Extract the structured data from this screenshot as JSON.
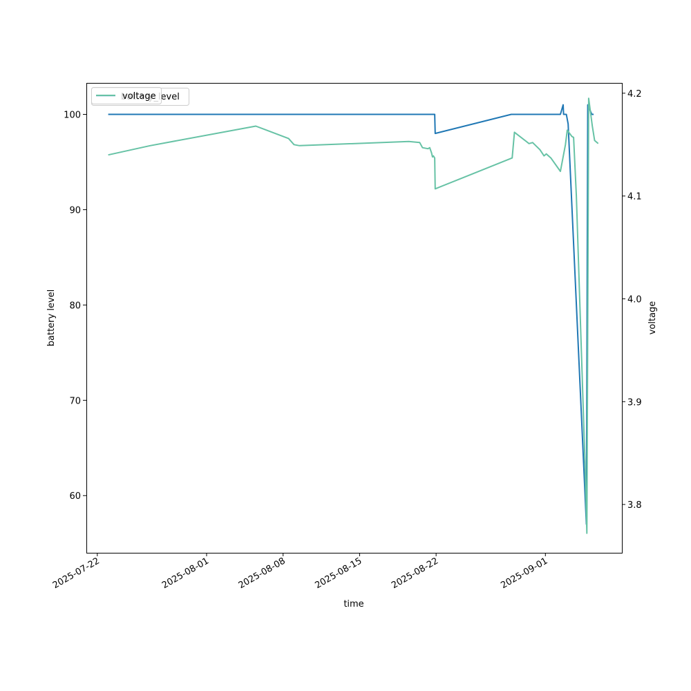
{
  "chart_data": {
    "type": "line",
    "title": "",
    "xlabel": "time",
    "ylabel_left": "battery level",
    "ylabel_right": "voltage",
    "x_range": [
      "2025-07-21",
      "2025-09-08"
    ],
    "x_ticks": [
      "2025-07-22",
      "2025-08-01",
      "2025-08-08",
      "2025-08-15",
      "2025-08-22",
      "2025-09-01"
    ],
    "y_left_range": [
      54,
      103.3
    ],
    "y_left_ticks": [
      60,
      70,
      80,
      90,
      100
    ],
    "y_right_range": [
      3.753,
      4.21
    ],
    "y_right_ticks": [
      3.8,
      3.9,
      4.0,
      4.1,
      4.2
    ],
    "grid": false,
    "legends": [
      {
        "placement": "top-left",
        "entries": [
          "battery_level"
        ]
      },
      {
        "placement": "top-left",
        "entries": [
          "voltage"
        ]
      }
    ],
    "series": [
      {
        "name": "battery_level",
        "axis": "left",
        "color": "#1f77b4",
        "points": [
          [
            "2025-07-23 00:00",
            100
          ],
          [
            "2025-08-21 21:00",
            100
          ],
          [
            "2025-08-21 22:00",
            98
          ],
          [
            "2025-08-28 21:00",
            100
          ],
          [
            "2025-09-02 09:00",
            100
          ],
          [
            "2025-09-02 15:00",
            101
          ],
          [
            "2025-09-02 16:00",
            100
          ],
          [
            "2025-09-02 22:00",
            100
          ],
          [
            "2025-09-03 02:00",
            99
          ],
          [
            "2025-09-04 18:00",
            57
          ],
          [
            "2025-09-04 21:00",
            101
          ],
          [
            "2025-09-05 06:00",
            100
          ],
          [
            "2025-09-05 10:00",
            100
          ]
        ]
      },
      {
        "name": "voltage",
        "axis": "right",
        "color": "#66c2a5",
        "points": [
          [
            "2025-07-23 00:00",
            4.14
          ],
          [
            "2025-07-26 20:00",
            4.149
          ],
          [
            "2025-08-05 12:00",
            4.168
          ],
          [
            "2025-08-08 12:00",
            4.156
          ],
          [
            "2025-08-09 00:00",
            4.15
          ],
          [
            "2025-08-09 12:00",
            4.149
          ],
          [
            "2025-08-19 12:00",
            4.153
          ],
          [
            "2025-08-20 12:00",
            4.152
          ],
          [
            "2025-08-20 18:00",
            4.147
          ],
          [
            "2025-08-21 06:00",
            4.146
          ],
          [
            "2025-08-21 10:00",
            4.147
          ],
          [
            "2025-08-21 14:00",
            4.142
          ],
          [
            "2025-08-21 16:00",
            4.138
          ],
          [
            "2025-08-21 18:00",
            4.139
          ],
          [
            "2025-08-21 21:00",
            4.137
          ],
          [
            "2025-08-21 22:00",
            4.107
          ],
          [
            "2025-08-28 23:00",
            4.137
          ],
          [
            "2025-08-29 04:00",
            4.162
          ],
          [
            "2025-08-30 12:00",
            4.151
          ],
          [
            "2025-08-30 20:00",
            4.152
          ],
          [
            "2025-08-31 12:00",
            4.145
          ],
          [
            "2025-08-31 21:00",
            4.139
          ],
          [
            "2025-09-01 02:00",
            4.141
          ],
          [
            "2025-09-01 12:00",
            4.137
          ],
          [
            "2025-09-02 09:00",
            4.124
          ],
          [
            "2025-09-02 20:00",
            4.15
          ],
          [
            "2025-09-03 00:00",
            4.164
          ],
          [
            "2025-09-03 10:00",
            4.158
          ],
          [
            "2025-09-03 14:00",
            4.157
          ],
          [
            "2025-09-03 20:00",
            4.1
          ],
          [
            "2025-09-04 15:00",
            3.84
          ],
          [
            "2025-09-04 19:00",
            3.772
          ],
          [
            "2025-09-04 23:00",
            4.195
          ],
          [
            "2025-09-05 07:00",
            4.168
          ],
          [
            "2025-09-05 12:00",
            4.154
          ],
          [
            "2025-09-05 20:00",
            4.151
          ]
        ]
      }
    ]
  }
}
